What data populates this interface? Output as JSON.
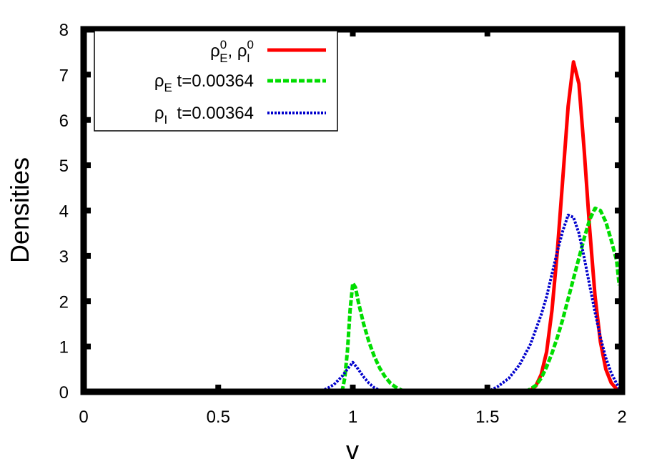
{
  "chart_data": {
    "type": "line",
    "xlabel": "v",
    "ylabel": "Densities",
    "xlim": [
      0,
      2
    ],
    "ylim": [
      0,
      8
    ],
    "xticks": [
      "0",
      "0.5",
      "1",
      "1.5",
      "2"
    ],
    "xtick_values": [
      0,
      0.5,
      1,
      1.5,
      2
    ],
    "yticks": [
      "0",
      "1",
      "2",
      "3",
      "4",
      "5",
      "6",
      "7",
      "8"
    ],
    "ytick_values": [
      0,
      1,
      2,
      3,
      4,
      5,
      6,
      7,
      8
    ],
    "grid": false,
    "legend_position": "top-left",
    "series": [
      {
        "name": "ρ0E, ρ0I",
        "legend": {
          "rho1": "ρ",
          "sup1": "0",
          "sub1": "E",
          "sep": ", ",
          "rho2": "ρ",
          "sup2": "0",
          "sub2": "I"
        },
        "color": "#ff0000",
        "style": "solid",
        "x": [
          1.64,
          1.66,
          1.68,
          1.7,
          1.72,
          1.74,
          1.76,
          1.78,
          1.8,
          1.82,
          1.84,
          1.86,
          1.88,
          1.9,
          1.92,
          1.94,
          1.96,
          1.98,
          1.99
        ],
        "y": [
          0.0,
          0.03,
          0.13,
          0.38,
          0.88,
          1.8,
          3.1,
          4.7,
          6.3,
          7.28,
          6.8,
          5.3,
          3.6,
          2.1,
          1.1,
          0.5,
          0.2,
          0.06,
          0.02
        ]
      },
      {
        "name": "ρE t=0.00364",
        "legend": {
          "rho": "ρ",
          "sub": "E",
          "text": " t=0.00364"
        },
        "color": "#00dd00",
        "style": "dashed",
        "x": [
          0.96,
          0.97,
          0.98,
          0.99,
          1.0,
          1.01,
          1.02,
          1.04,
          1.06,
          1.08,
          1.1,
          1.12,
          1.14,
          1.16,
          1.18,
          1.2,
          1.64,
          1.66,
          1.68,
          1.7,
          1.72,
          1.74,
          1.76,
          1.78,
          1.8,
          1.82,
          1.84,
          1.86,
          1.88,
          1.9,
          1.92,
          1.94,
          1.96,
          1.98,
          1.99
        ],
        "y": [
          0.0,
          0.3,
          0.9,
          1.8,
          2.4,
          2.3,
          2.0,
          1.5,
          1.1,
          0.78,
          0.52,
          0.33,
          0.19,
          0.1,
          0.04,
          0.0,
          0.0,
          0.06,
          0.14,
          0.3,
          0.55,
          0.85,
          1.2,
          1.6,
          2.05,
          2.5,
          2.95,
          3.4,
          3.8,
          4.05,
          4.0,
          3.75,
          3.35,
          2.9,
          2.35
        ]
      },
      {
        "name": "ρI t=0.00364",
        "legend": {
          "rho": "ρ",
          "sub": "I",
          "text": "  t=0.00364"
        },
        "color": "#0000cc",
        "style": "dotted",
        "x": [
          0.87,
          0.9,
          0.93,
          0.96,
          0.98,
          1.0,
          1.02,
          1.04,
          1.06,
          1.08,
          1.1,
          1.12,
          1.5,
          1.54,
          1.58,
          1.62,
          1.66,
          1.7,
          1.72,
          1.74,
          1.76,
          1.78,
          1.8,
          1.82,
          1.84,
          1.86,
          1.88,
          1.9,
          1.92,
          1.94,
          1.96,
          1.98,
          1.99
        ],
        "y": [
          0.0,
          0.06,
          0.16,
          0.34,
          0.5,
          0.65,
          0.5,
          0.33,
          0.19,
          0.09,
          0.03,
          0.0,
          0.0,
          0.12,
          0.3,
          0.6,
          1.05,
          1.7,
          2.1,
          2.6,
          3.1,
          3.55,
          3.9,
          3.85,
          3.5,
          2.95,
          2.35,
          1.75,
          1.2,
          0.75,
          0.42,
          0.18,
          0.08
        ]
      }
    ]
  }
}
